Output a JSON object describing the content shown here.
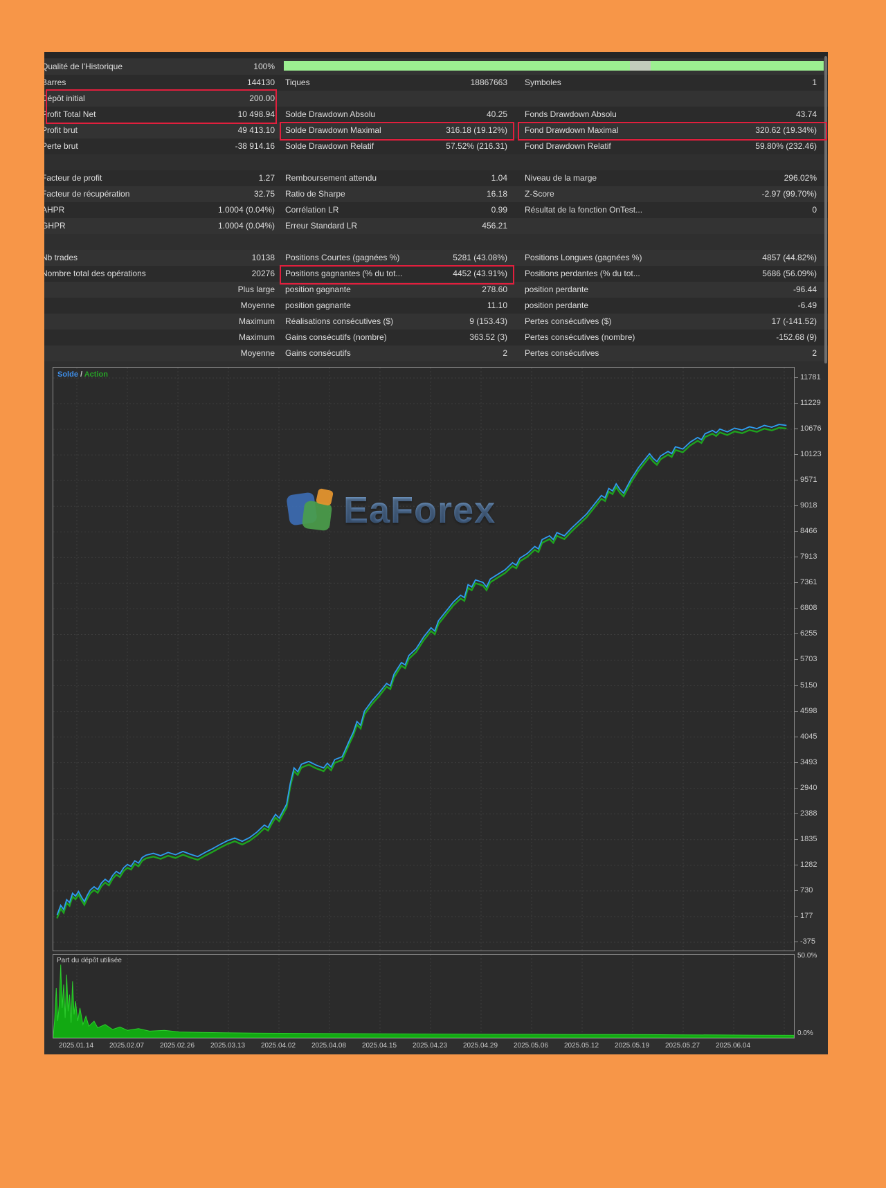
{
  "colors": {
    "frame_orange": "#f79648",
    "panel_bg": "#2f2f2f",
    "highlight_red": "#e11f3d",
    "quality_bar_green": "#9cef91",
    "quality_bar_gap": "#c2cbbc",
    "balance_blue": "#2f9df0",
    "equity_green": "#1ea31e",
    "deposit_area_green": "#12a912",
    "grid_gray": "#3c3c3c"
  },
  "stats_table": {
    "quality_bar_value": "100%",
    "rows": [
      {
        "t": "row",
        "c": [
          "Qualité de l'Historique",
          "100%",
          "",
          "",
          "",
          ""
        ]
      },
      {
        "t": "row",
        "c": [
          "Barres",
          "144130",
          "Tiques",
          "18867663",
          "Symboles",
          "1"
        ]
      },
      {
        "t": "row",
        "c": [
          "Dépôt initial",
          "200.00",
          "",
          "",
          "",
          ""
        ]
      },
      {
        "t": "row",
        "c": [
          "Profit Total Net",
          "10 498.94",
          "Solde Drawdown Absolu",
          "40.25",
          "Fonds Drawdown Absolu",
          "43.74"
        ]
      },
      {
        "t": "row",
        "c": [
          "Profit brut",
          "49 413.10",
          "Solde Drawdown Maximal",
          "316.18 (19.12%)",
          "Fond Drawdown Maximal",
          "320.62 (19.34%)"
        ]
      },
      {
        "t": "row",
        "c": [
          "Perte brut",
          "-38 914.16",
          "Solde Drawdown Relatif",
          "57.52% (216.31)",
          "Fond Drawdown Relatif",
          "59.80% (232.46)"
        ]
      },
      {
        "t": "gap",
        "c": [
          "",
          "",
          "",
          "",
          "",
          ""
        ]
      },
      {
        "t": "row",
        "c": [
          "Facteur de profit",
          "1.27",
          "Remboursement attendu",
          "1.04",
          "Niveau de la marge",
          "296.02%"
        ]
      },
      {
        "t": "row",
        "c": [
          "Facteur de récupération",
          "32.75",
          "Ratio de Sharpe",
          "16.18",
          "Z-Score",
          "-2.97 (99.70%)"
        ]
      },
      {
        "t": "row",
        "c": [
          "AHPR",
          "1.0004 (0.04%)",
          "Corrélation LR",
          "0.99",
          "Résultat de la fonction OnTest...",
          "0"
        ]
      },
      {
        "t": "row",
        "c": [
          "GHPR",
          "1.0004 (0.04%)",
          "Erreur Standard LR",
          "456.21",
          "",
          ""
        ]
      },
      {
        "t": "gap",
        "c": [
          "",
          "",
          "",
          "",
          "",
          ""
        ]
      },
      {
        "t": "row",
        "c": [
          "Nb trades",
          "10138",
          "Positions Courtes (gagnées %)",
          "5281 (43.08%)",
          "Positions Longues (gagnées %)",
          "4857 (44.82%)"
        ]
      },
      {
        "t": "row",
        "c": [
          "Nombre total des opérations",
          "20276",
          "Positions gagnantes (% du tot...",
          "4452 (43.91%)",
          "Positions perdantes (% du tot...",
          "5686 (56.09%)"
        ]
      },
      {
        "t": "row",
        "c": [
          "",
          "Plus large",
          "position gagnante",
          "278.60",
          "position perdante",
          "-96.44"
        ]
      },
      {
        "t": "row",
        "c": [
          "",
          "Moyenne",
          "position gagnante",
          "11.10",
          "position perdante",
          "-6.49"
        ]
      },
      {
        "t": "row",
        "c": [
          "",
          "Maximum",
          "Réalisations consécutives ($)",
          "9 (153.43)",
          "Pertes consécutives ($)",
          "17 (-141.52)"
        ]
      },
      {
        "t": "row",
        "c": [
          "",
          "Maximum",
          "Gains consécutifs (nombre)",
          "363.52 (3)",
          "Pertes consécutives (nombre)",
          "-152.68 (9)"
        ]
      },
      {
        "t": "row",
        "c": [
          "",
          "Moyenne",
          "Gains consécutifs",
          "2",
          "Pertes consécutives",
          "2"
        ]
      }
    ]
  },
  "chart_data": [
    {
      "type": "line",
      "title": "",
      "legend": [
        "Solde",
        "Action"
      ],
      "legend_separator": "/",
      "ylim": [
        -375,
        11781
      ],
      "y_ticks": [
        11781,
        11229,
        10676,
        10123,
        9571,
        9018,
        8466,
        7913,
        7361,
        6808,
        6255,
        5703,
        5150,
        4598,
        4045,
        3493,
        2940,
        2388,
        1835,
        1282,
        730,
        177,
        -375
      ],
      "x_tick_labels": [
        "2025.01.14",
        "2025.02.07",
        "2025.02.26",
        "2025.03.13",
        "2025.04.02",
        "2025.04.08",
        "2025.04.15",
        "2025.04.23",
        "2025.04.29",
        "2025.05.06",
        "2025.05.12",
        "2025.05.19",
        "2025.05.27",
        "2025.06.04"
      ],
      "grid": true,
      "legend_position": "top-left",
      "series": [
        {
          "name": "Solde",
          "color": "#2f9df0",
          "points": [
            [
              0.005,
              210
            ],
            [
              0.01,
              420
            ],
            [
              0.014,
              330
            ],
            [
              0.018,
              540
            ],
            [
              0.022,
              480
            ],
            [
              0.026,
              680
            ],
            [
              0.03,
              620
            ],
            [
              0.034,
              720
            ],
            [
              0.038,
              600
            ],
            [
              0.042,
              500
            ],
            [
              0.046,
              640
            ],
            [
              0.05,
              750
            ],
            [
              0.055,
              820
            ],
            [
              0.06,
              760
            ],
            [
              0.065,
              900
            ],
            [
              0.07,
              980
            ],
            [
              0.075,
              920
            ],
            [
              0.08,
              1060
            ],
            [
              0.085,
              1150
            ],
            [
              0.09,
              1100
            ],
            [
              0.095,
              1230
            ],
            [
              0.1,
              1300
            ],
            [
              0.105,
              1260
            ],
            [
              0.11,
              1380
            ],
            [
              0.115,
              1330
            ],
            [
              0.12,
              1450
            ],
            [
              0.125,
              1500
            ],
            [
              0.135,
              1540
            ],
            [
              0.145,
              1490
            ],
            [
              0.155,
              1560
            ],
            [
              0.165,
              1510
            ],
            [
              0.175,
              1580
            ],
            [
              0.185,
              1520
            ],
            [
              0.195,
              1470
            ],
            [
              0.205,
              1560
            ],
            [
              0.215,
              1640
            ],
            [
              0.225,
              1730
            ],
            [
              0.235,
              1810
            ],
            [
              0.245,
              1870
            ],
            [
              0.255,
              1800
            ],
            [
              0.265,
              1880
            ],
            [
              0.275,
              2000
            ],
            [
              0.285,
              2150
            ],
            [
              0.29,
              2100
            ],
            [
              0.295,
              2250
            ],
            [
              0.3,
              2380
            ],
            [
              0.305,
              2300
            ],
            [
              0.31,
              2450
            ],
            [
              0.315,
              2600
            ],
            [
              0.32,
              3050
            ],
            [
              0.325,
              3380
            ],
            [
              0.33,
              3300
            ],
            [
              0.335,
              3460
            ],
            [
              0.345,
              3520
            ],
            [
              0.355,
              3440
            ],
            [
              0.365,
              3380
            ],
            [
              0.37,
              3480
            ],
            [
              0.375,
              3400
            ],
            [
              0.38,
              3560
            ],
            [
              0.39,
              3620
            ],
            [
              0.395,
              3800
            ],
            [
              0.4,
              3980
            ],
            [
              0.405,
              4150
            ],
            [
              0.41,
              4380
            ],
            [
              0.415,
              4300
            ],
            [
              0.42,
              4600
            ],
            [
              0.43,
              4820
            ],
            [
              0.44,
              5000
            ],
            [
              0.45,
              5200
            ],
            [
              0.455,
              5150
            ],
            [
              0.46,
              5400
            ],
            [
              0.47,
              5650
            ],
            [
              0.475,
              5600
            ],
            [
              0.48,
              5800
            ],
            [
              0.49,
              5950
            ],
            [
              0.5,
              6200
            ],
            [
              0.51,
              6400
            ],
            [
              0.515,
              6330
            ],
            [
              0.52,
              6550
            ],
            [
              0.53,
              6750
            ],
            [
              0.54,
              6950
            ],
            [
              0.55,
              7100
            ],
            [
              0.555,
              7050
            ],
            [
              0.56,
              7330
            ],
            [
              0.565,
              7280
            ],
            [
              0.57,
              7430
            ],
            [
              0.58,
              7380
            ],
            [
              0.585,
              7280
            ],
            [
              0.59,
              7450
            ],
            [
              0.6,
              7550
            ],
            [
              0.61,
              7650
            ],
            [
              0.62,
              7800
            ],
            [
              0.625,
              7750
            ],
            [
              0.63,
              7900
            ],
            [
              0.64,
              8000
            ],
            [
              0.65,
              8150
            ],
            [
              0.655,
              8100
            ],
            [
              0.66,
              8300
            ],
            [
              0.67,
              8380
            ],
            [
              0.675,
              8300
            ],
            [
              0.68,
              8450
            ],
            [
              0.69,
              8380
            ],
            [
              0.7,
              8550
            ],
            [
              0.71,
              8700
            ],
            [
              0.72,
              8850
            ],
            [
              0.73,
              9050
            ],
            [
              0.74,
              9250
            ],
            [
              0.745,
              9200
            ],
            [
              0.75,
              9400
            ],
            [
              0.755,
              9350
            ],
            [
              0.76,
              9500
            ],
            [
              0.765,
              9380
            ],
            [
              0.77,
              9300
            ],
            [
              0.78,
              9600
            ],
            [
              0.79,
              9850
            ],
            [
              0.8,
              10050
            ],
            [
              0.805,
              10150
            ],
            [
              0.81,
              10050
            ],
            [
              0.815,
              9980
            ],
            [
              0.82,
              10100
            ],
            [
              0.83,
              10200
            ],
            [
              0.835,
              10150
            ],
            [
              0.84,
              10300
            ],
            [
              0.85,
              10250
            ],
            [
              0.86,
              10400
            ],
            [
              0.87,
              10500
            ],
            [
              0.875,
              10450
            ],
            [
              0.88,
              10580
            ],
            [
              0.89,
              10650
            ],
            [
              0.895,
              10600
            ],
            [
              0.9,
              10680
            ],
            [
              0.91,
              10620
            ],
            [
              0.92,
              10700
            ],
            [
              0.93,
              10660
            ],
            [
              0.94,
              10730
            ],
            [
              0.95,
              10690
            ],
            [
              0.96,
              10760
            ],
            [
              0.97,
              10720
            ],
            [
              0.98,
              10780
            ],
            [
              0.99,
              10760
            ]
          ]
        },
        {
          "name": "Action",
          "color": "#1ea31e",
          "derived_from": "Solde",
          "value_offset": -70
        }
      ]
    },
    {
      "type": "area",
      "title": "Part du dépôt utilisée",
      "ylim": [
        0,
        50
      ],
      "ymax_label": "50.0%",
      "ymin_label": "0.0%",
      "color": "#12a912",
      "points": [
        [
          0,
          1
        ],
        [
          0.002,
          12
        ],
        [
          0.004,
          30
        ],
        [
          0.006,
          10
        ],
        [
          0.008,
          20
        ],
        [
          0.01,
          44
        ],
        [
          0.012,
          18
        ],
        [
          0.014,
          32
        ],
        [
          0.016,
          12
        ],
        [
          0.018,
          38
        ],
        [
          0.02,
          16
        ],
        [
          0.022,
          26
        ],
        [
          0.024,
          9
        ],
        [
          0.026,
          34
        ],
        [
          0.028,
          14
        ],
        [
          0.03,
          22
        ],
        [
          0.033,
          10
        ],
        [
          0.036,
          18
        ],
        [
          0.04,
          8
        ],
        [
          0.044,
          13
        ],
        [
          0.048,
          7
        ],
        [
          0.055,
          10
        ],
        [
          0.06,
          6
        ],
        [
          0.07,
          8
        ],
        [
          0.08,
          5
        ],
        [
          0.09,
          6.5
        ],
        [
          0.1,
          4.5
        ],
        [
          0.115,
          5.5
        ],
        [
          0.13,
          4
        ],
        [
          0.15,
          4.5
        ],
        [
          0.17,
          3.5
        ],
        [
          0.2,
          3.2
        ],
        [
          0.23,
          3
        ],
        [
          0.27,
          2.8
        ],
        [
          0.31,
          2.7
        ],
        [
          0.35,
          2.6
        ],
        [
          0.4,
          2.5
        ],
        [
          0.45,
          2.4
        ],
        [
          0.5,
          2.3
        ],
        [
          0.55,
          2.2
        ],
        [
          0.6,
          2.1
        ],
        [
          0.65,
          2.1
        ],
        [
          0.7,
          2
        ],
        [
          0.75,
          2
        ],
        [
          0.8,
          1.9
        ],
        [
          0.85,
          1.8
        ],
        [
          0.9,
          1.7
        ],
        [
          0.95,
          1.6
        ],
        [
          1.0,
          1.5
        ]
      ]
    }
  ],
  "watermark": {
    "text": "EaForex"
  }
}
